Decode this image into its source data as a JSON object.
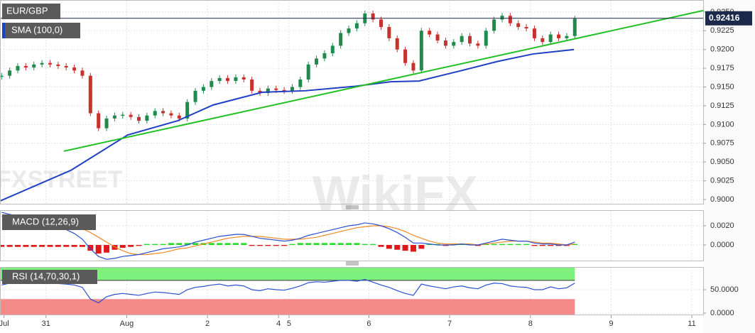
{
  "chart_data": [
    {
      "type": "candlestick",
      "title": "EUR/GBP",
      "x": [
        -0.55,
        -0.45,
        -0.35,
        -0.25,
        -0.15,
        -0.05,
        0.05,
        0.15,
        0.25,
        0.35,
        0.45,
        0.55,
        0.65,
        0.75,
        0.85,
        0.95,
        1.05,
        1.15,
        1.25,
        1.35,
        1.45,
        1.55,
        1.65,
        1.75,
        1.85,
        1.95,
        2.05,
        2.15,
        2.25,
        2.35,
        2.45,
        2.55,
        2.65,
        2.75,
        2.85,
        2.95,
        3.05,
        3.15,
        3.25,
        3.35,
        3.45,
        3.55,
        3.65,
        3.75,
        3.85,
        3.95,
        4.05,
        4.15,
        4.25,
        4.35,
        4.45,
        4.55,
        4.65,
        4.75,
        4.85,
        4.95,
        5.05,
        5.15,
        5.25,
        5.35,
        5.45,
        5.55,
        5.65,
        5.75,
        5.85,
        5.95,
        6.05,
        6.15,
        6.25,
        6.35,
        6.45,
        6.55
      ],
      "values": [
        0.9165,
        0.9172,
        0.9178,
        0.9176,
        0.918,
        0.9182,
        0.918,
        0.9178,
        0.9176,
        0.9172,
        0.9165,
        0.9115,
        0.9095,
        0.9108,
        0.9112,
        0.9113,
        0.911,
        0.9105,
        0.9112,
        0.9118,
        0.9115,
        0.9112,
        0.9108,
        0.913,
        0.9145,
        0.915,
        0.9158,
        0.9162,
        0.9158,
        0.9163,
        0.916,
        0.9145,
        0.9142,
        0.9148,
        0.9146,
        0.9145,
        0.915,
        0.916,
        0.918,
        0.9188,
        0.9195,
        0.9205,
        0.9222,
        0.9228,
        0.9235,
        0.9248,
        0.924,
        0.923,
        0.9215,
        0.92,
        0.9182,
        0.9172,
        0.9225,
        0.922,
        0.9212,
        0.9205,
        0.921,
        0.9218,
        0.9208,
        0.9205,
        0.9225,
        0.924,
        0.9245,
        0.9235,
        0.923,
        0.9228,
        0.9215,
        0.921,
        0.922,
        0.9215,
        0.9218,
        0.9241
      ],
      "up_color": "#1f8a4c",
      "down_color": "#c8322c",
      "series": [
        {
          "name": "SMA (100,0)",
          "color": "#1f3fc4",
          "x": [
            -0.57,
            0.31,
            1.01,
            1.63,
            2.07,
            2.68,
            3.21,
            3.83,
            4.27,
            4.62,
            5.15,
            5.59,
            6.03,
            6.54
          ],
          "values": [
            0.8998,
            0.9039,
            0.9086,
            0.9105,
            0.9126,
            0.9143,
            0.9145,
            0.9151,
            0.9157,
            0.9158,
            0.9172,
            0.9184,
            0.9194,
            0.92
          ]
        }
      ],
      "trendline": {
        "color": "#22c022",
        "x": [
          0.22,
          8.14
        ],
        "values": [
          0.90644,
          0.92519
        ]
      },
      "last_price": 0.92416,
      "xlim": [
        -0.57,
        8.14
      ],
      "xticks": [
        {
          "value": -0.52,
          "label": "Jul"
        },
        {
          "value": 0,
          "label": "31"
        },
        {
          "value": 1,
          "label": "Aug"
        },
        {
          "value": 2,
          "label": "2"
        },
        {
          "value": 2.88,
          "label": "4"
        },
        {
          "value": 3.01,
          "label": "5"
        },
        {
          "value": 4,
          "label": "6"
        },
        {
          "value": 5,
          "label": "7"
        },
        {
          "value": 6,
          "label": "8"
        },
        {
          "value": 7,
          "label": "9"
        },
        {
          "value": 8,
          "label": "11"
        }
      ],
      "ylim": [
        0.89943,
        0.9266
      ],
      "yticks": [
        {
          "value": 0.9,
          "label": "0.9000"
        },
        0.9025,
        {
          "value": 0.905,
          "label": "0.9050"
        },
        0.9075,
        {
          "value": 0.91,
          "label": "0.9100"
        },
        0.9125,
        {
          "value": 0.915,
          "label": "0.9150"
        },
        0.9175,
        {
          "value": 0.92,
          "label": "0.9200"
        },
        0.9225,
        {
          "value": 0.925,
          "label": "0.9250"
        }
      ],
      "grid": true,
      "watermarks": [
        "FXSTREET",
        "WikiFX"
      ]
    },
    {
      "type": "macd",
      "title": "MACD (12,26,9)",
      "macd": {
        "color": "#2a4fd0",
        "values": [
          0.0034,
          0.0032,
          0.003,
          0.0028,
          0.0026,
          0.0024,
          0.0022,
          0.0019,
          0.0016,
          0.0012,
          0.0006,
          -0.0004,
          -0.0012,
          -0.0015,
          -0.0014,
          -0.0012,
          -0.0011,
          -0.001,
          -0.0008,
          -0.0006,
          -0.0004,
          -0.0003,
          -0.0002,
          0,
          0.0003,
          0.0005,
          0.0007,
          0.0009,
          0.001,
          0.0011,
          0.0011,
          0.0009,
          0.0007,
          0.0006,
          0.0005,
          0.0004,
          0.0005,
          0.0007,
          0.001,
          0.0012,
          0.0014,
          0.0016,
          0.0018,
          0.002,
          0.0021,
          0.0023,
          0.0022,
          0.002,
          0.0017,
          0.0013,
          0.0008,
          0.0002,
          0.0002,
          0.0001,
          0,
          0,
          0,
          0.0001,
          0,
          0,
          0.0002,
          0.0004,
          0.0006,
          0.0005,
          0.0004,
          0.0004,
          0.0002,
          0.0001,
          0.0001,
          0,
          0,
          0.0003
        ]
      },
      "signal": {
        "color": "#f08a24",
        "values": [
          0.003,
          0.003,
          0.003,
          0.0029,
          0.0028,
          0.0027,
          0.0026,
          0.0024,
          0.0022,
          0.002,
          0.0017,
          0.0013,
          0.0008,
          0.0003,
          -0.0002,
          -0.0006,
          -0.0009,
          -0.001,
          -0.001,
          -0.0009,
          -0.0008,
          -0.0006,
          -0.0004,
          -0.0003,
          -0.0001,
          0.0001,
          0.0003,
          0.0005,
          0.0007,
          0.0008,
          0.0009,
          0.0009,
          0.0009,
          0.0008,
          0.0007,
          0.0006,
          0.0006,
          0.0006,
          0.0007,
          0.0008,
          0.001,
          0.0012,
          0.0014,
          0.0016,
          0.0018,
          0.0019,
          0.002,
          0.002,
          0.0019,
          0.0017,
          0.0014,
          0.001,
          0.0007,
          0.0004,
          0.0002,
          0.0001,
          0.0001,
          0.0001,
          0.0001,
          0,
          0.0001,
          0.0002,
          0.0003,
          0.0004,
          0.0004,
          0.0004,
          0.0003,
          0.0002,
          0.0002,
          0.0001,
          0,
          0.0001
        ]
      },
      "histogram": {
        "up_color": "#22dd22",
        "down_color": "#e01818",
        "values": [
          -0.0002,
          -0.0002,
          -0.0002,
          -0.0002,
          -0.0002,
          -0.0002,
          -0.0002,
          -0.0002,
          -0.0002,
          -0.0002,
          -0.0002,
          -0.0006,
          -0.0009,
          -0.0008,
          -0.0005,
          -0.0003,
          -0.0002,
          -0.0001,
          0.0001,
          0.0001,
          0.0001,
          0.0002,
          0.0002,
          0.0002,
          0.0002,
          0.0002,
          0.0002,
          0.0002,
          0.0002,
          0.0002,
          0.0002,
          -0.0001,
          -0.0001,
          -0.0001,
          -0.0001,
          -0.0001,
          0.0001,
          0.0002,
          0.0002,
          0.0002,
          0.0002,
          0.0002,
          0.0002,
          0.0002,
          0.0002,
          0.0001,
          0.0001,
          -0.0002,
          -0.0004,
          -0.0005,
          -0.0006,
          -0.0007,
          -0.0004,
          0.0001,
          0.0001,
          -0.0001,
          0.0001,
          0.0001,
          0.0001,
          -0.0001,
          0.0001,
          0.0001,
          0.0001,
          0.0001,
          0.0001,
          0.0001,
          -0.0001,
          -0.0001,
          -0.0001,
          -0.0001,
          -0.0001,
          0.0001
        ]
      },
      "ylim": [
        -0.00163,
        0.00363
      ],
      "yticks": [
        {
          "value": 0,
          "label": "0.0000"
        },
        {
          "value": 0.002,
          "label": "0.0020"
        }
      ],
      "grid": true
    },
    {
      "type": "rsi",
      "title": "RSI (14,70,30,1)",
      "color": "#2a4fd0",
      "values": [
        60,
        64,
        66,
        65,
        67,
        66,
        64,
        63,
        62,
        60,
        55,
        30,
        22,
        35,
        40,
        42,
        40,
        38,
        42,
        45,
        44,
        42,
        40,
        50,
        55,
        57,
        60,
        62,
        58,
        60,
        58,
        50,
        48,
        52,
        50,
        49,
        53,
        58,
        65,
        67,
        66,
        68,
        70,
        70,
        68,
        72,
        66,
        60,
        55,
        48,
        42,
        38,
        62,
        58,
        55,
        52,
        56,
        58,
        54,
        52,
        60,
        64,
        63,
        58,
        56,
        55,
        50,
        50,
        56,
        52,
        54,
        64
      ],
      "overbought": {
        "value": 70,
        "color": "#7ef07e"
      },
      "oversold": {
        "value": 30,
        "color": "#f58a8a"
      },
      "ylim": [
        -3,
        98.5
      ],
      "yticks": [
        {
          "value": 0,
          "label": "0.0000"
        },
        {
          "value": 50,
          "label": "50.0000"
        }
      ],
      "grid": true
    }
  ]
}
